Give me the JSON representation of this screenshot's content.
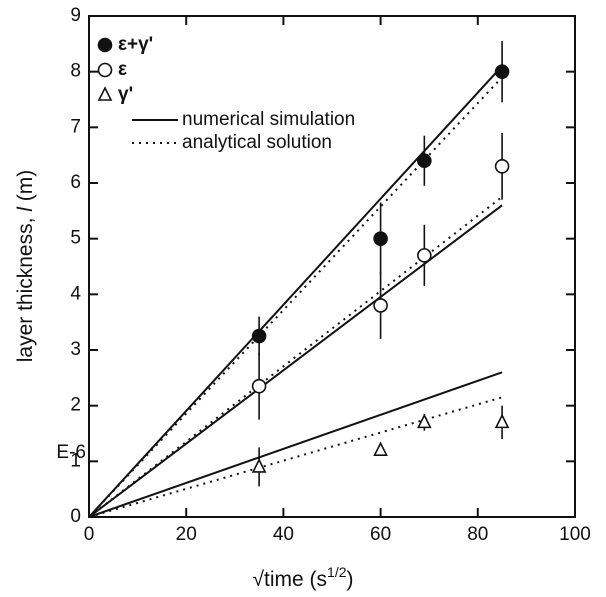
{
  "chart_data": {
    "type": "scatter",
    "x_label": {
      "main": "√time (s",
      "sup": "1/2",
      "end": ")"
    },
    "y_label": {
      "main": "layer thickness, ",
      "italic": "l",
      "end": " (m)"
    },
    "annotation": "E-6",
    "xlim": [
      0,
      100
    ],
    "xticks": [
      0,
      20,
      40,
      60,
      80,
      100
    ],
    "ylim": [
      0,
      9
    ],
    "yticks": [
      0,
      1,
      2,
      3,
      4,
      5,
      6,
      7,
      8,
      9
    ],
    "color": "#111111",
    "series": [
      {
        "name": "ε+γ'",
        "marker": "filled-circle",
        "x": [
          35,
          60,
          69,
          85
        ],
        "values": [
          3.25,
          5.0,
          6.4,
          8.0
        ],
        "errors": [
          0.35,
          0.65,
          0.45,
          0.55
        ]
      },
      {
        "name": "ε",
        "marker": "open-circle",
        "x": [
          35,
          60,
          69,
          85
        ],
        "values": [
          2.35,
          3.8,
          4.7,
          6.3
        ],
        "errors": [
          0.6,
          0.6,
          0.55,
          0.6
        ]
      },
      {
        "name": "γ'",
        "marker": "triangle",
        "x": [
          35,
          60,
          69,
          85
        ],
        "values": [
          0.9,
          1.2,
          1.7,
          1.7
        ],
        "errors": [
          0.35,
          0.1,
          0.15,
          0.3
        ]
      }
    ],
    "legend_lines": [
      {
        "name": "numerical simulation",
        "style": "solid"
      },
      {
        "name": "analytical solution",
        "style": "dotted"
      }
    ],
    "lines": [
      {
        "style": "solid",
        "x": [
          0,
          85
        ],
        "values": [
          0,
          8.1
        ]
      },
      {
        "style": "solid",
        "x": [
          0,
          85
        ],
        "values": [
          0,
          5.6
        ]
      },
      {
        "style": "solid",
        "x": [
          0,
          85
        ],
        "values": [
          0,
          2.6
        ]
      },
      {
        "style": "dotted",
        "x": [
          0,
          85
        ],
        "values": [
          0,
          7.9
        ]
      },
      {
        "style": "dotted",
        "x": [
          0,
          85
        ],
        "values": [
          0,
          5.75
        ]
      },
      {
        "style": "dotted",
        "x": [
          0,
          85
        ],
        "values": [
          0,
          2.15
        ]
      }
    ]
  }
}
